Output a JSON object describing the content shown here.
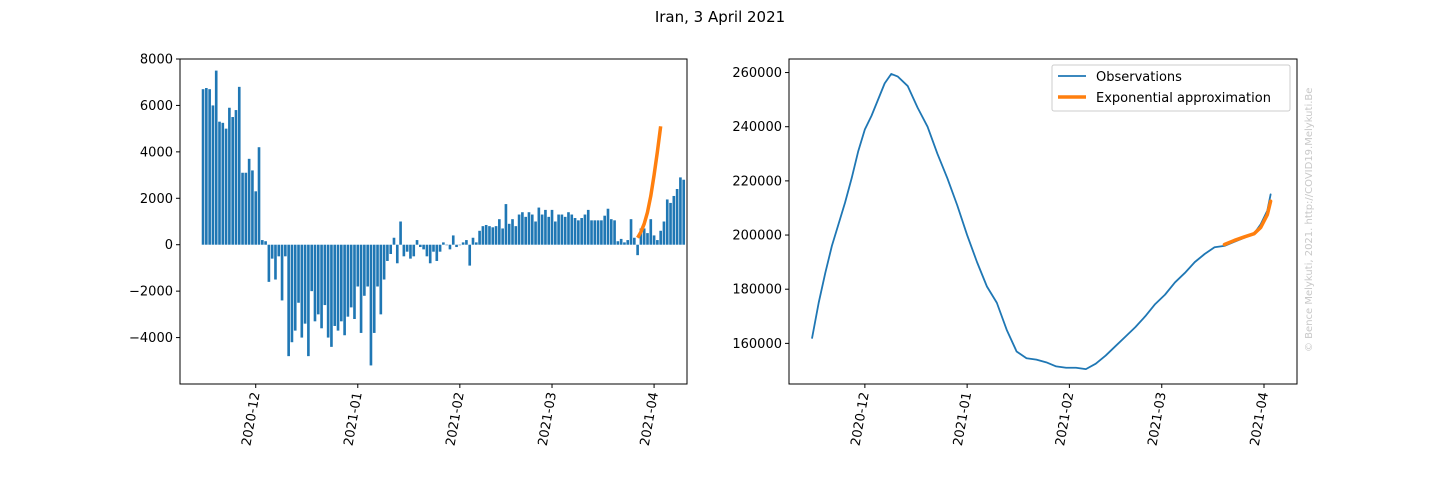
{
  "figure_title": "Iran, 3 April 2021",
  "watermark": "© Bence Melykuti, 2021. http://COVID19.Melykuti.Be",
  "colors": {
    "blue": "#1f77b4",
    "orange": "#ff7f0e"
  },
  "chart_data": [
    {
      "type": "bar",
      "title": "",
      "xlabel": "",
      "ylabel": "",
      "x_tick_labels": [
        "2020-12",
        "2021-01",
        "2021-02",
        "2021-03",
        "2021-04"
      ],
      "x_ticks": [
        "2020-12-01",
        "2021-01-01",
        "2021-02-01",
        "2021-03-01",
        "2021-04-01"
      ],
      "xlim": [
        "2020-11-08",
        "2021-04-11"
      ],
      "ylim": [
        -6000,
        8000
      ],
      "y_ticks": [
        -4000,
        -2000,
        0,
        2000,
        4000,
        6000,
        8000
      ],
      "y_tick_labels": [
        "−4000",
        "−2000",
        "0",
        "2000",
        "4000",
        "6000",
        "8000"
      ],
      "grid": false,
      "series": [
        {
          "type": "bar",
          "color": "#1f77b4",
          "start_date": "2020-11-15",
          "values": [
            6700,
            6750,
            6700,
            6000,
            7500,
            5300,
            5250,
            5000,
            5900,
            5500,
            5800,
            6800,
            3100,
            3100,
            3700,
            3200,
            2300,
            4200,
            200,
            150,
            -1600,
            -600,
            -1500,
            -500,
            -2400,
            -500,
            -4800,
            -4200,
            -3700,
            -2500,
            -4000,
            -3400,
            -4800,
            -2000,
            -3300,
            -3000,
            -3600,
            -2600,
            -4000,
            -4400,
            -3500,
            -3700,
            -3300,
            -3900,
            -3100,
            -2700,
            -3200,
            -1800,
            -3800,
            -2200,
            -1800,
            -5200,
            -3800,
            -1800,
            -3000,
            -1500,
            -700,
            -400,
            300,
            -800,
            1000,
            -500,
            -300,
            -600,
            -500,
            200,
            -100,
            -200,
            -500,
            -800,
            -300,
            -700,
            -300,
            100,
            0,
            -200,
            400,
            -100,
            0,
            100,
            200,
            -900,
            300,
            100,
            600,
            800,
            850,
            800,
            750,
            800,
            1100,
            700,
            1750,
            900,
            1100,
            800,
            1300,
            1400,
            1200,
            1400,
            1300,
            1000,
            1600,
            1300,
            1500,
            1200,
            1500,
            1000,
            1300,
            1300,
            1200,
            1400,
            1300,
            1150,
            1050,
            1150,
            1300,
            1500,
            1050,
            1050,
            1050,
            1050,
            1250,
            1550,
            1100,
            1050,
            150,
            250,
            100,
            200,
            1100,
            300,
            -450,
            700,
            700,
            500,
            1100,
            400,
            200,
            600,
            1000,
            1950,
            1800,
            2100,
            2400,
            2900,
            2800
          ]
        },
        {
          "type": "line",
          "name": "Exponential approximation",
          "color": "#ff7f0e",
          "x": [
            "2021-03-27",
            "2021-03-28",
            "2021-03-29",
            "2021-03-30",
            "2021-03-31",
            "2021-04-01",
            "2021-04-02",
            "2021-04-03"
          ],
          "values": [
            300,
            550,
            900,
            1400,
            2100,
            3000,
            4000,
            5100
          ]
        }
      ]
    },
    {
      "type": "line",
      "title": "",
      "xlabel": "",
      "ylabel": "",
      "x_tick_labels": [
        "2020-12",
        "2021-01",
        "2021-02",
        "2021-03",
        "2021-04"
      ],
      "x_ticks": [
        "2020-12-01",
        "2021-01-01",
        "2021-02-01",
        "2021-03-01",
        "2021-04-01"
      ],
      "xlim": [
        "2020-11-08",
        "2021-04-11"
      ],
      "ylim": [
        145000,
        265000
      ],
      "y_ticks": [
        160000,
        180000,
        200000,
        220000,
        240000,
        260000
      ],
      "y_tick_labels": [
        "160000",
        "180000",
        "200000",
        "220000",
        "240000",
        "260000"
      ],
      "grid": false,
      "legend": {
        "position": "upper right",
        "entries": [
          "Observations",
          "Exponential approximation"
        ]
      },
      "series": [
        {
          "name": "Observations",
          "color": "#1f77b4",
          "x": [
            "2020-11-15",
            "2020-11-17",
            "2020-11-19",
            "2020-11-21",
            "2020-11-23",
            "2020-11-25",
            "2020-11-27",
            "2020-11-29",
            "2020-12-01",
            "2020-12-03",
            "2020-12-05",
            "2020-12-07",
            "2020-12-09",
            "2020-12-11",
            "2020-12-14",
            "2020-12-17",
            "2020-12-20",
            "2020-12-23",
            "2020-12-26",
            "2020-12-29",
            "2021-01-01",
            "2021-01-04",
            "2021-01-07",
            "2021-01-10",
            "2021-01-13",
            "2021-01-16",
            "2021-01-19",
            "2021-01-22",
            "2021-01-25",
            "2021-01-28",
            "2021-01-31",
            "2021-02-03",
            "2021-02-06",
            "2021-02-09",
            "2021-02-12",
            "2021-02-15",
            "2021-02-18",
            "2021-02-21",
            "2021-02-24",
            "2021-02-27",
            "2021-03-02",
            "2021-03-05",
            "2021-03-08",
            "2021-03-11",
            "2021-03-14",
            "2021-03-17",
            "2021-03-20",
            "2021-03-23",
            "2021-03-26",
            "2021-03-29",
            "2021-03-31",
            "2021-04-02",
            "2021-04-03"
          ],
          "values": [
            162000,
            175000,
            186000,
            196000,
            204000,
            212000,
            221000,
            231000,
            239000,
            244000,
            250000,
            256000,
            259500,
            258500,
            255000,
            247000,
            240000,
            230000,
            221000,
            211000,
            200000,
            190000,
            181000,
            175000,
            165000,
            157000,
            154500,
            154000,
            153000,
            151500,
            151000,
            151000,
            150500,
            152500,
            155500,
            159000,
            162500,
            166000,
            170000,
            174500,
            178000,
            182500,
            186000,
            190000,
            193000,
            195500,
            196000,
            197500,
            199000,
            200500,
            204000,
            209000,
            215000
          ]
        },
        {
          "name": "Exponential approximation",
          "color": "#ff7f0e",
          "x": [
            "2021-03-20",
            "2021-03-23",
            "2021-03-26",
            "2021-03-29",
            "2021-03-31",
            "2021-04-02",
            "2021-04-03"
          ],
          "values": [
            196500,
            198000,
            199300,
            200500,
            202800,
            207500,
            212500
          ]
        }
      ]
    }
  ]
}
